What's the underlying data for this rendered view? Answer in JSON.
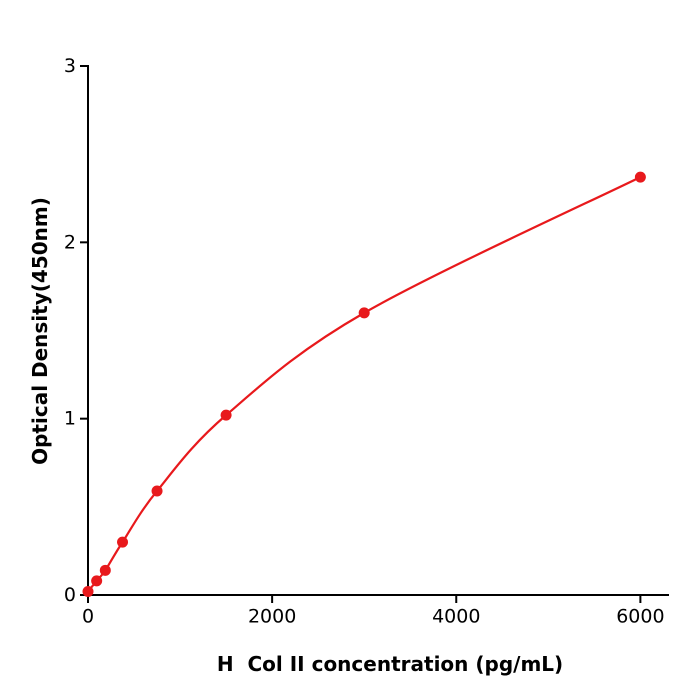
{
  "chart_data": {
    "type": "line",
    "x": [
      0,
      94,
      188,
      375,
      750,
      1500,
      3000,
      6000
    ],
    "y": [
      0.02,
      0.08,
      0.14,
      0.3,
      0.59,
      1.02,
      1.6,
      2.37
    ],
    "title": "",
    "xlabel": "H  Col II concentration (pg/mL)",
    "ylabel": "Optical Density(450nm)",
    "xlim": [
      0,
      6300
    ],
    "ylim": [
      0,
      3
    ],
    "xticks": [
      0,
      2000,
      4000,
      6000
    ],
    "yticks": [
      0,
      1,
      2,
      3
    ],
    "grid": false,
    "legend": null,
    "line_color": "#e8191c",
    "marker_color": "#e8191c",
    "axis_color": "#000000"
  }
}
